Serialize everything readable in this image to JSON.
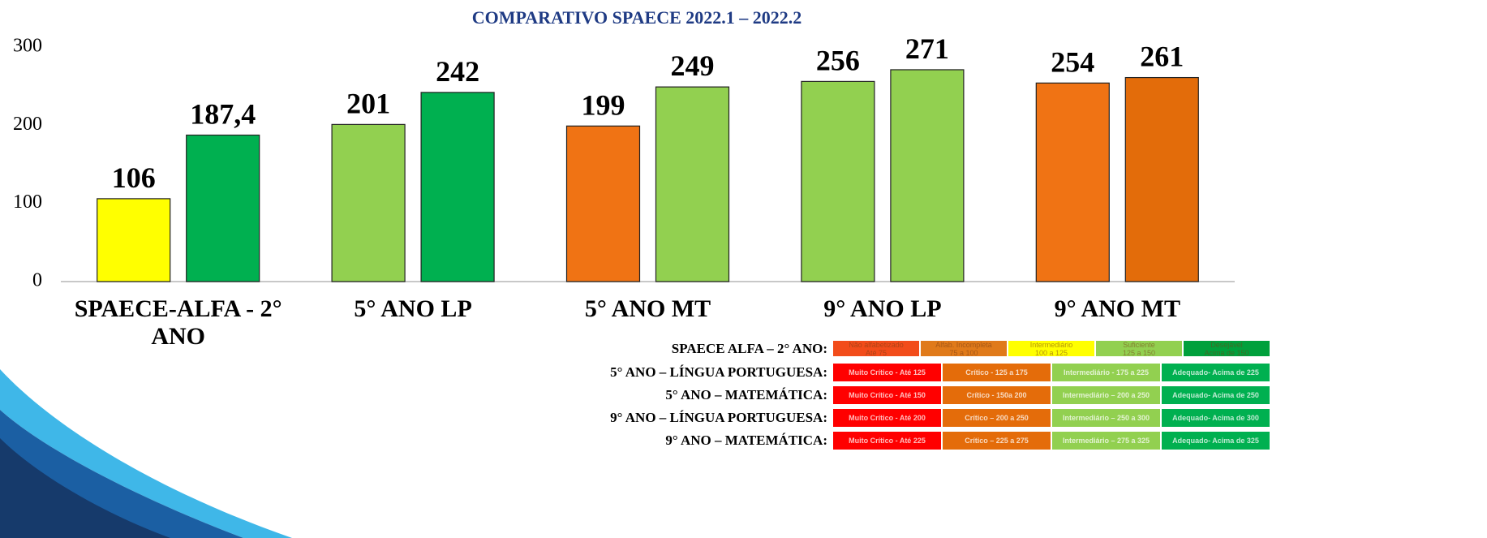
{
  "chart_data": {
    "type": "bar",
    "title": "COMPARATIVO SPAECE 2022.1 – 2022.2",
    "categories": [
      "SPAECE-ALFA - 2° ANO",
      "5° ANO LP",
      "5° ANO MT",
      "9° ANO LP",
      "9° ANO MT"
    ],
    "series": [
      {
        "values": [
          106,
          201,
          199,
          256,
          254
        ],
        "colors": [
          "#ffff00",
          "#92d050",
          "#f07314",
          "#92d050",
          "#f07314"
        ]
      },
      {
        "values": [
          187.4,
          242,
          249,
          271,
          261
        ],
        "value_labels": [
          "187,4",
          "242",
          "249",
          "271",
          "261"
        ],
        "colors": [
          "#00b050",
          "#00b050",
          "#92d050",
          "#92d050",
          "#e36c0a"
        ]
      }
    ],
    "ylim": [
      0,
      300
    ],
    "yticks": [
      0,
      100,
      200,
      300
    ],
    "grid": false
  },
  "scale_table": {
    "rows": [
      {
        "label": "SPAECE ALFA – 2° ANO:",
        "cells": [
          {
            "title": "Não alfabetizado",
            "range": "Até 75",
            "color": "#f24c1a"
          },
          {
            "title": "Alfab. Incompleta",
            "range": "75 a 100",
            "color": "#e07a1a"
          },
          {
            "title": "Intermediário",
            "range": "100 a 125",
            "color": "#ffff00"
          },
          {
            "title": "Suficiente",
            "range": "125 a 150",
            "color": "#92d050"
          },
          {
            "title": "Desejável",
            "range": "Acima de 150",
            "color": "#00a03c"
          }
        ]
      },
      {
        "label": "5° ANO – LÍNGUA PORTUGUESA:",
        "cells": [
          {
            "title": "Muito Crítico - Até 125",
            "color": "#ff0000"
          },
          {
            "title": "Crítico - 125 a 175",
            "color": "#e46c0a"
          },
          {
            "title": "Intermediário - 175 a 225",
            "color": "#92d050"
          },
          {
            "title": "Adequado- Acima de 225",
            "color": "#00b050"
          }
        ]
      },
      {
        "label": "5° ANO – MATEMÁTICA:",
        "cells": [
          {
            "title": "Muito Crítico - Até 150",
            "color": "#ff0000"
          },
          {
            "title": "Crítico - 150a 200",
            "color": "#e46c0a"
          },
          {
            "title": "Intermediário – 200 a 250",
            "color": "#92d050"
          },
          {
            "title": "Adequado- Acima de 250",
            "color": "#00b050"
          }
        ]
      },
      {
        "label": "9° ANO – LÍNGUA PORTUGUESA:",
        "cells": [
          {
            "title": "Muito Crítico - Até 200",
            "color": "#ff0000"
          },
          {
            "title": "Crítico – 200 a 250",
            "color": "#e46c0a"
          },
          {
            "title": "Intermediário – 250 a 300",
            "color": "#92d050"
          },
          {
            "title": "Adequado- Acima de 300",
            "color": "#00b050"
          }
        ]
      },
      {
        "label": "9° ANO – MATEMÁTICA:",
        "cells": [
          {
            "title": "Muito Crítico - Até 225",
            "color": "#ff0000"
          },
          {
            "title": "Crítico – 225 a 275",
            "color": "#e46c0a"
          },
          {
            "title": "Intermediário – 275 a 325",
            "color": "#92d050"
          },
          {
            "title": "Adequado- Acima de 325",
            "color": "#00b050"
          }
        ]
      }
    ]
  }
}
